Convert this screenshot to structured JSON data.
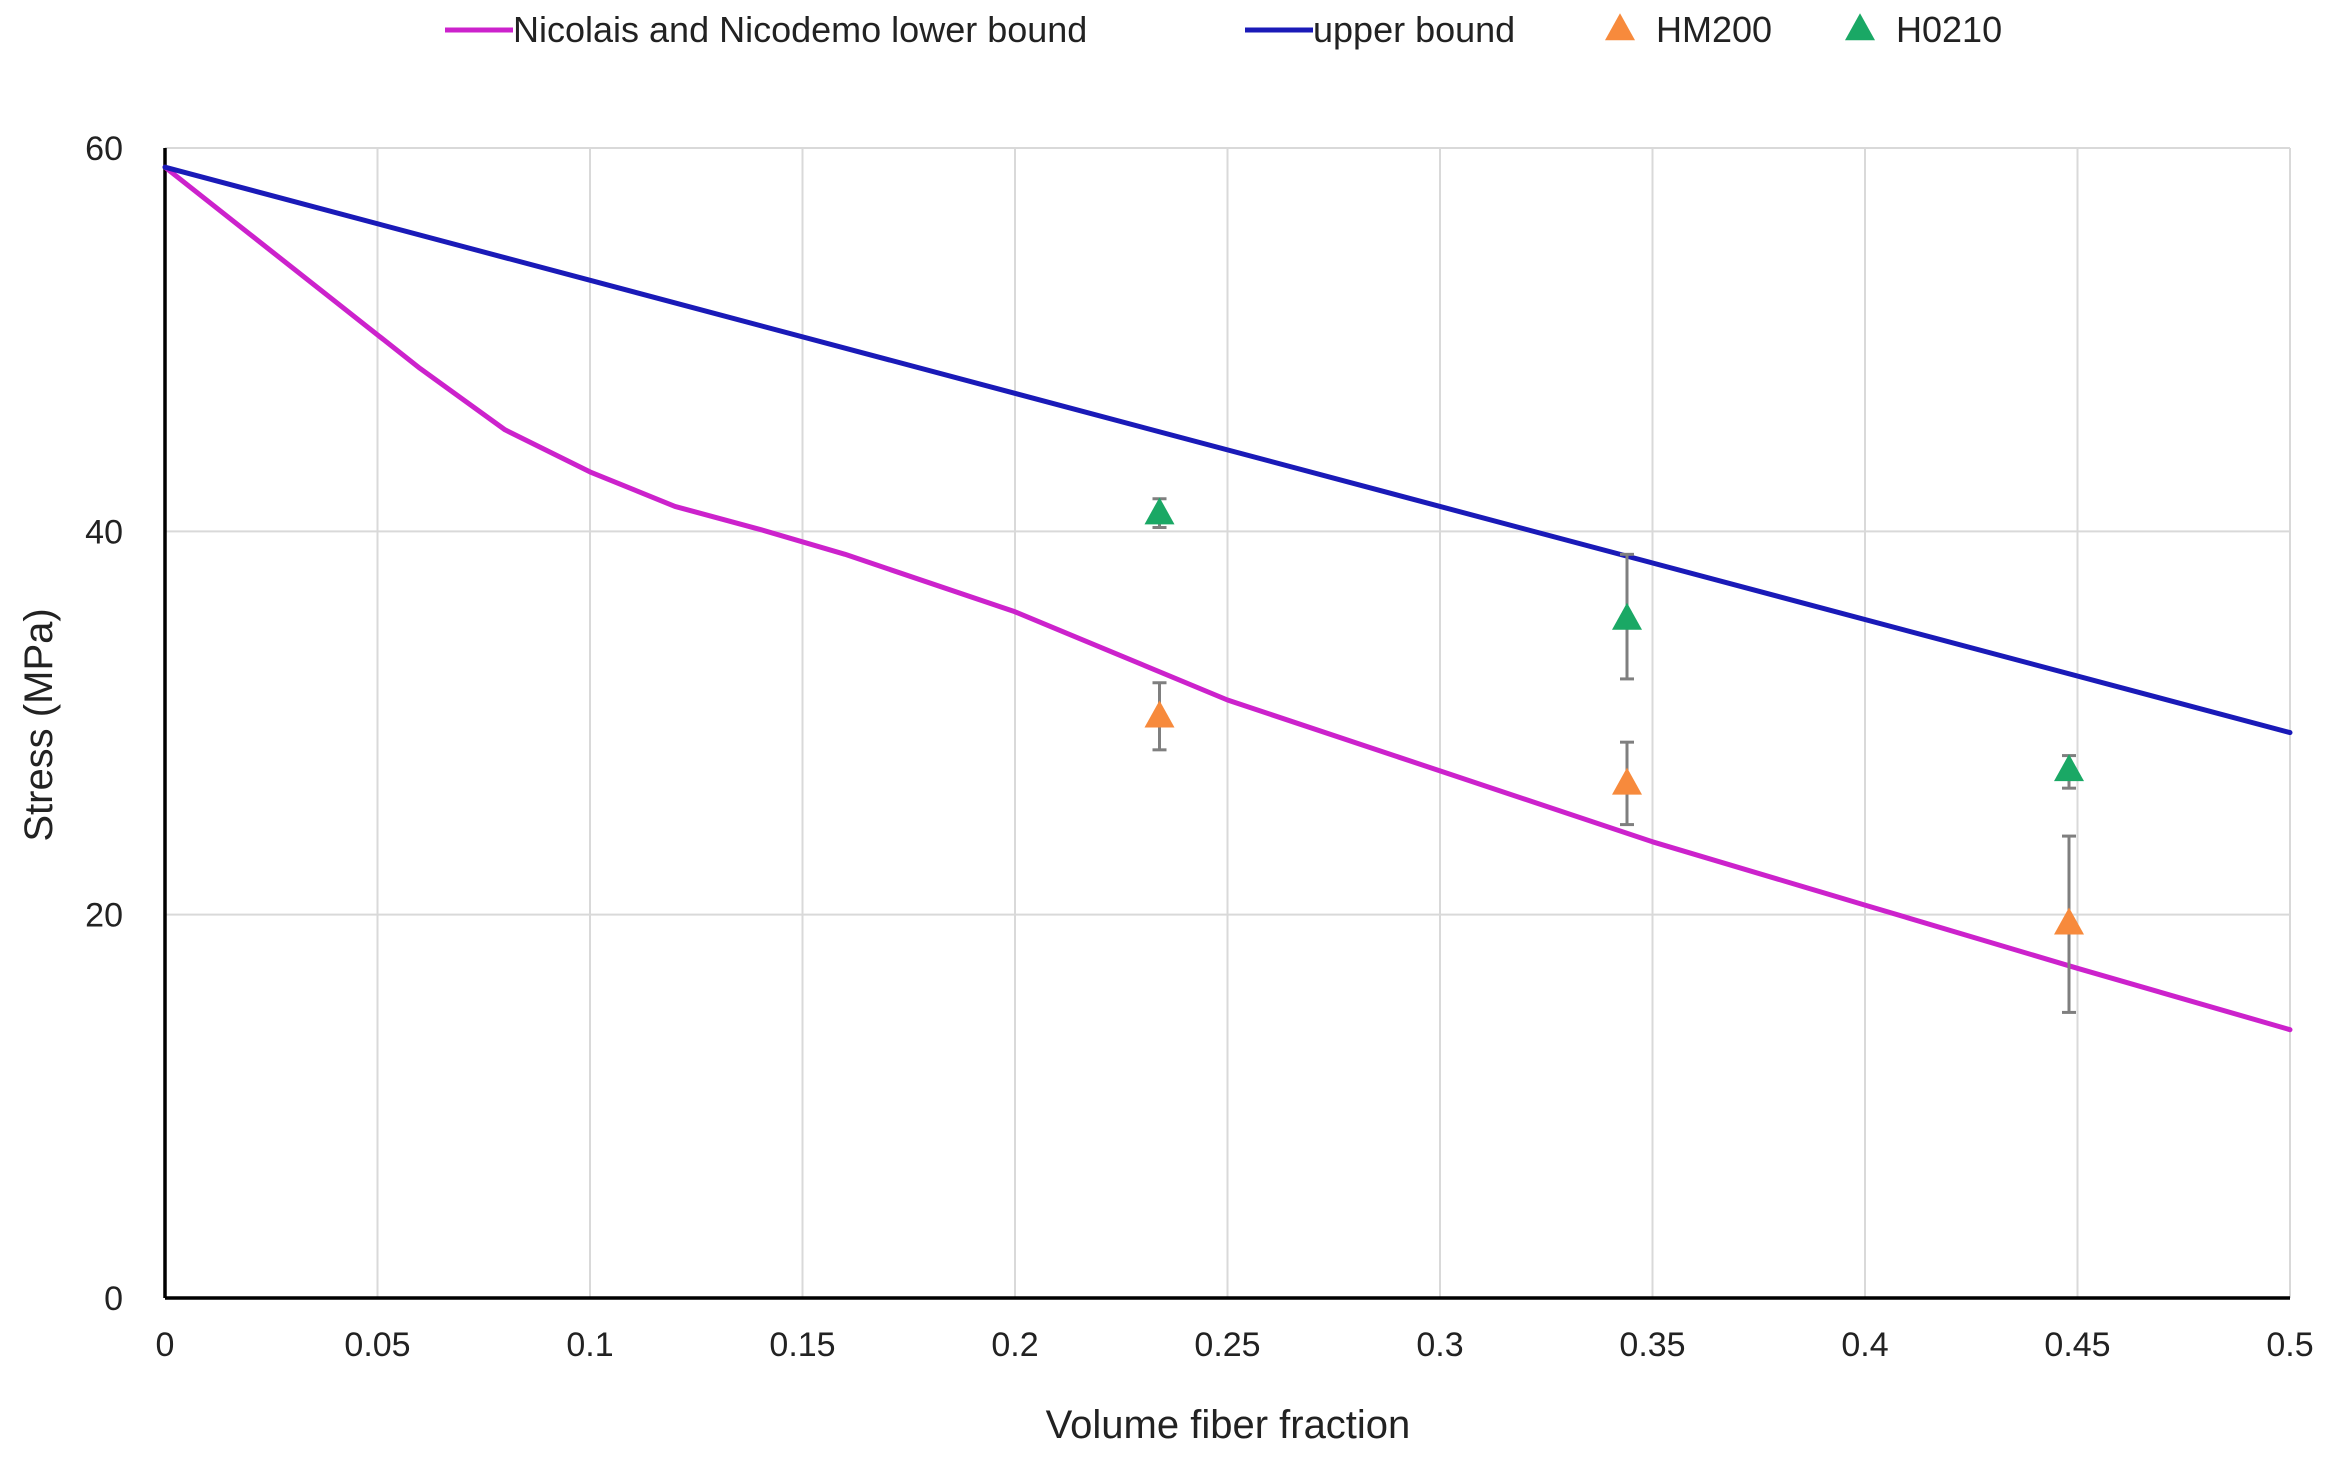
{
  "chart_data": {
    "type": "line",
    "title": "",
    "xlabel": "Volume fiber fraction",
    "ylabel": "Stress (MPa)",
    "xlim": [
      0,
      0.5
    ],
    "ylim": [
      0,
      60
    ],
    "grid": true,
    "legend_position": "top",
    "x_ticks": [
      {
        "value": 0,
        "label": "0"
      },
      {
        "value": 0.05,
        "label": "0.05"
      },
      {
        "value": 0.1,
        "label": "0.1"
      },
      {
        "value": 0.15,
        "label": "0.15"
      },
      {
        "value": 0.2,
        "label": "0.2"
      },
      {
        "value": 0.25,
        "label": "0.25"
      },
      {
        "value": 0.3,
        "label": "0.3"
      },
      {
        "value": 0.35,
        "label": "0.35"
      },
      {
        "value": 0.4,
        "label": "0.4"
      },
      {
        "value": 0.45,
        "label": "0.45"
      },
      {
        "value": 0.5,
        "label": "0.5"
      }
    ],
    "y_ticks": [
      {
        "value": 0,
        "label": "0"
      },
      {
        "value": 20,
        "label": "20"
      },
      {
        "value": 40,
        "label": "40"
      },
      {
        "value": 60,
        "label": "60"
      }
    ],
    "series": [
      {
        "name": "Nicolais and Nicodemo lower bound",
        "kind": "line",
        "color": "#cc22cc",
        "x": [
          0,
          0.02,
          0.04,
          0.06,
          0.08,
          0.1,
          0.12,
          0.14,
          0.16,
          0.2,
          0.25,
          0.3,
          0.35,
          0.4,
          0.45,
          0.5
        ],
        "y": [
          59,
          55.5,
          52,
          48.5,
          45.3,
          43.1,
          41.3,
          40.1,
          38.8,
          35.8,
          31.2,
          27.5,
          23.8,
          20.5,
          17.2,
          14
        ]
      },
      {
        "name": "upper bound",
        "kind": "line",
        "color": "#1a1ab8",
        "x": [
          0,
          0.5
        ],
        "y": [
          59,
          29.5
        ]
      },
      {
        "name": "HM200",
        "kind": "scatter",
        "marker": "triangle",
        "color": "#f78a3c",
        "points": [
          {
            "x": 0.234,
            "y": 30.3,
            "err_low": 28.6,
            "err_high": 32.1
          },
          {
            "x": 0.344,
            "y": 26.8,
            "err_low": 24.7,
            "err_high": 29.0
          },
          {
            "x": 0.448,
            "y": 19.5,
            "err_low": 14.9,
            "err_high": 24.1
          }
        ]
      },
      {
        "name": "H0210",
        "kind": "scatter",
        "marker": "triangle",
        "color": "#1aa865",
        "points": [
          {
            "x": 0.234,
            "y": 40.9,
            "err_low": 40.2,
            "err_high": 41.7
          },
          {
            "x": 0.344,
            "y": 35.4,
            "err_low": 32.3,
            "err_high": 38.8
          },
          {
            "x": 0.448,
            "y": 27.5,
            "err_low": 26.6,
            "err_high": 28.3
          }
        ]
      }
    ],
    "legend": [
      {
        "label": "Nicolais and Nicodemo lower bound",
        "symbol": "line",
        "color": "#cc22cc"
      },
      {
        "label": "upper bound",
        "symbol": "line",
        "color": "#1a1ab8"
      },
      {
        "label": "HM200",
        "symbol": "triangle",
        "color": "#f78a3c"
      },
      {
        "label": "H0210",
        "symbol": "triangle",
        "color": "#1aa865"
      }
    ],
    "colors": {
      "grid": "#d9d9d9",
      "axis": "#000000",
      "error_bar": "#7f7f7f"
    }
  }
}
